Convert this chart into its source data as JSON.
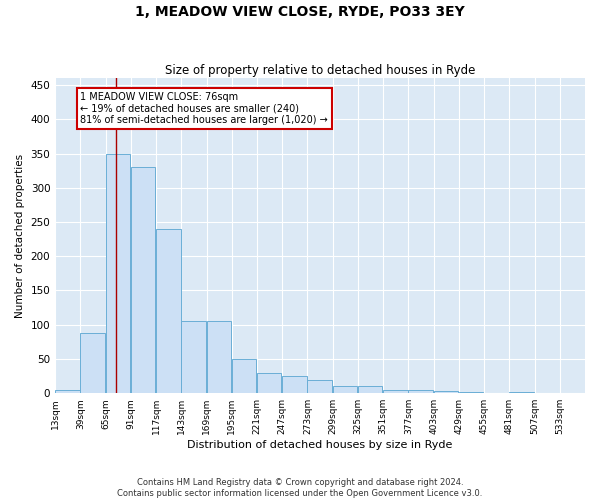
{
  "title": "1, MEADOW VIEW CLOSE, RYDE, PO33 3EY",
  "subtitle": "Size of property relative to detached houses in Ryde",
  "xlabel": "Distribution of detached houses by size in Ryde",
  "ylabel": "Number of detached properties",
  "bar_color": "#cce0f5",
  "bar_edge_color": "#6aaed6",
  "background_color": "#dce9f5",
  "grid_color": "#ffffff",
  "property_line_x": 76,
  "property_line_color": "#aa0000",
  "annotation_text": "1 MEADOW VIEW CLOSE: 76sqm\n← 19% of detached houses are smaller (240)\n81% of semi-detached houses are larger (1,020) →",
  "annotation_box_facecolor": "#ffffff",
  "annotation_box_edgecolor": "#cc0000",
  "footnote": "Contains HM Land Registry data © Crown copyright and database right 2024.\nContains public sector information licensed under the Open Government Licence v3.0.",
  "bins": [
    13,
    39,
    65,
    91,
    117,
    143,
    169,
    195,
    221,
    247,
    273,
    299,
    325,
    351,
    377,
    403,
    429,
    455,
    481,
    507,
    533
  ],
  "values": [
    5,
    88,
    350,
    330,
    240,
    105,
    105,
    50,
    30,
    25,
    20,
    10,
    10,
    5,
    4,
    3,
    2,
    0,
    2,
    0,
    1
  ],
  "ylim": [
    0,
    460
  ],
  "yticks": [
    0,
    50,
    100,
    150,
    200,
    250,
    300,
    350,
    400,
    450
  ],
  "figsize": [
    6.0,
    5.0
  ],
  "dpi": 100
}
